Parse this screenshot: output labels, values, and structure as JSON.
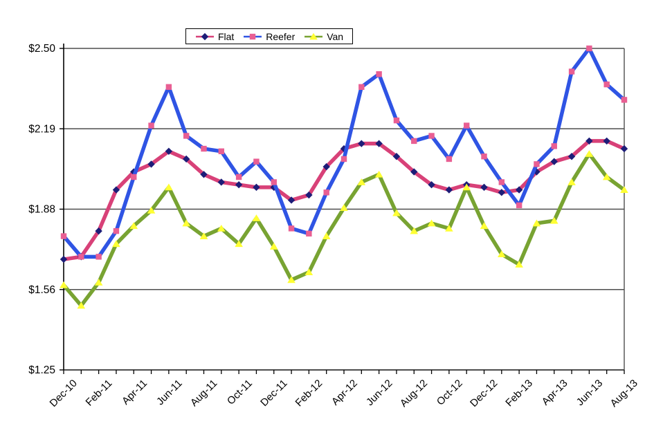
{
  "legend": {
    "position": "top-center"
  },
  "axes": {
    "y_tick_labels": [
      "$2.50",
      "$2.19",
      "$1.88",
      "$1.56",
      "$1.25"
    ],
    "x_label_every": 2
  },
  "colors": {
    "background": "#ffffff",
    "gridline": "#4d4d4d",
    "axis": "#000000",
    "text": "#000000",
    "flat_line": "#d84178",
    "flat_marker": "#1d1d78",
    "reefer_line": "#2f54e4",
    "reefer_marker": "#e95f93",
    "van_line": "#78a332",
    "van_marker": "#ffff33"
  },
  "chart_data": {
    "type": "line",
    "title": "",
    "xlabel": "",
    "ylabel": "",
    "grid": true,
    "legend_position": "top",
    "ylim": [
      1.25,
      2.5
    ],
    "y_ticks": [
      {
        "value": 1.25,
        "label": "$1.25"
      },
      {
        "value": 1.5625,
        "label": "$1.56"
      },
      {
        "value": 1.875,
        "label": "$1.88"
      },
      {
        "value": 2.1875,
        "label": "$2.19"
      },
      {
        "value": 2.5,
        "label": "$2.50"
      }
    ],
    "x": [
      "Dec-10",
      "Jan-11",
      "Feb-11",
      "Mar-11",
      "Apr-11",
      "May-11",
      "Jun-11",
      "Jul-11",
      "Aug-11",
      "Sep-11",
      "Oct-11",
      "Nov-11",
      "Dec-11",
      "Jan-12",
      "Feb-12",
      "Mar-12",
      "Apr-12",
      "May-12",
      "Jun-12",
      "Jul-12",
      "Aug-12",
      "Sep-12",
      "Oct-12",
      "Nov-12",
      "Dec-12",
      "Jan-13",
      "Feb-13",
      "Mar-13",
      "Apr-13",
      "May-13",
      "Jun-13",
      "Jul-13",
      "Aug-13"
    ],
    "x_labeled_ticks": [
      "Dec-10",
      "Feb-11",
      "Apr-11",
      "Jun-11",
      "Aug-11",
      "Oct-11",
      "Dec-11",
      "Feb-12",
      "Apr-12",
      "Jun-12",
      "Aug-12",
      "Oct-12",
      "Dec-12",
      "Feb-13",
      "Apr-13",
      "Jun-13",
      "Aug-13"
    ],
    "series": [
      {
        "name": "Flat",
        "marker": "diamond",
        "line_color_key": "flat_line",
        "marker_color_key": "flat_marker",
        "values": [
          1.68,
          1.69,
          1.79,
          1.95,
          2.02,
          2.05,
          2.1,
          2.07,
          2.01,
          1.98,
          1.97,
          1.96,
          1.96,
          1.91,
          1.93,
          2.04,
          2.11,
          2.13,
          2.13,
          2.08,
          2.02,
          1.97,
          1.95,
          1.97,
          1.96,
          1.94,
          1.95,
          2.02,
          2.06,
          2.08,
          2.14,
          2.14,
          2.11
        ]
      },
      {
        "name": "Reefer",
        "marker": "square",
        "line_color_key": "reefer_line",
        "marker_color_key": "reefer_marker",
        "values": [
          1.77,
          1.69,
          1.69,
          1.79,
          2.0,
          2.2,
          2.35,
          2.16,
          2.11,
          2.1,
          2.0,
          2.06,
          1.98,
          1.8,
          1.78,
          1.94,
          2.07,
          2.35,
          2.4,
          2.22,
          2.14,
          2.16,
          2.07,
          2.2,
          2.08,
          1.98,
          1.89,
          2.05,
          2.12,
          2.41,
          2.5,
          2.36,
          2.3
        ]
      },
      {
        "name": "Van",
        "marker": "triangle",
        "line_color_key": "van_line",
        "marker_color_key": "van_marker",
        "values": [
          1.58,
          1.5,
          1.59,
          1.74,
          1.81,
          1.87,
          1.96,
          1.82,
          1.77,
          1.8,
          1.74,
          1.84,
          1.73,
          1.6,
          1.63,
          1.77,
          1.88,
          1.98,
          2.01,
          1.86,
          1.79,
          1.82,
          1.8,
          1.96,
          1.81,
          1.7,
          1.66,
          1.82,
          1.83,
          1.98,
          2.09,
          2.0,
          1.95
        ]
      }
    ]
  }
}
